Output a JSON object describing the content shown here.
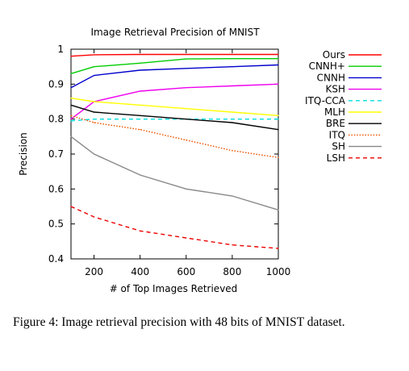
{
  "chart_data": {
    "type": "line",
    "title": "Image Retrieval Precision of MNIST",
    "xlabel": "# of Top Images Retrieved",
    "ylabel": "Precision",
    "xlim": [
      100,
      1000
    ],
    "ylim": [
      0.4,
      1.0
    ],
    "xticks": [
      200,
      400,
      600,
      800,
      1000
    ],
    "yticks": [
      0.4,
      0.5,
      0.6,
      0.7,
      0.8,
      0.9,
      1.0
    ],
    "ytick_labels": [
      "0.4",
      "0.5",
      "0.6",
      "0.7",
      "0.8",
      "0.9",
      "1"
    ],
    "grid": false,
    "legend_position": "top-right",
    "x": [
      100,
      200,
      400,
      600,
      800,
      1000
    ],
    "series": [
      {
        "name": "Ours",
        "color": "#ff0000",
        "dash": "solid",
        "values": [
          0.98,
          0.984,
          0.985,
          0.985,
          0.985,
          0.985
        ]
      },
      {
        "name": "CNNH+",
        "color": "#00cc00",
        "dash": "solid",
        "values": [
          0.93,
          0.95,
          0.96,
          0.972,
          0.973,
          0.973
        ]
      },
      {
        "name": "CNNH",
        "color": "#0000cc",
        "dash": "solid",
        "values": [
          0.89,
          0.925,
          0.94,
          0.945,
          0.95,
          0.955
        ]
      },
      {
        "name": "KSH",
        "color": "#ee00ee",
        "dash": "solid",
        "values": [
          0.8,
          0.85,
          0.88,
          0.89,
          0.895,
          0.9
        ]
      },
      {
        "name": "ITQ-CCA",
        "color": "#00dddd",
        "dash": "dashed",
        "values": [
          0.795,
          0.8,
          0.8,
          0.8,
          0.8,
          0.8
        ]
      },
      {
        "name": "MLH",
        "color": "#ffff00",
        "dash": "solid",
        "values": [
          0.86,
          0.85,
          0.84,
          0.83,
          0.82,
          0.81
        ]
      },
      {
        "name": "BRE",
        "color": "#000000",
        "dash": "solid",
        "values": [
          0.84,
          0.82,
          0.81,
          0.8,
          0.79,
          0.77
        ]
      },
      {
        "name": "ITQ",
        "color": "#ee5500",
        "dash": "dotted",
        "values": [
          0.81,
          0.79,
          0.77,
          0.74,
          0.71,
          0.69
        ]
      },
      {
        "name": "SH",
        "color": "#888888",
        "dash": "solid",
        "values": [
          0.75,
          0.7,
          0.64,
          0.6,
          0.58,
          0.54
        ]
      },
      {
        "name": "LSH",
        "color": "#ee0000",
        "dash": "dashed",
        "values": [
          0.55,
          0.52,
          0.48,
          0.46,
          0.44,
          0.43
        ]
      }
    ]
  },
  "caption": "Figure 4: Image retrieval precision with 48 bits of MNIST dataset."
}
